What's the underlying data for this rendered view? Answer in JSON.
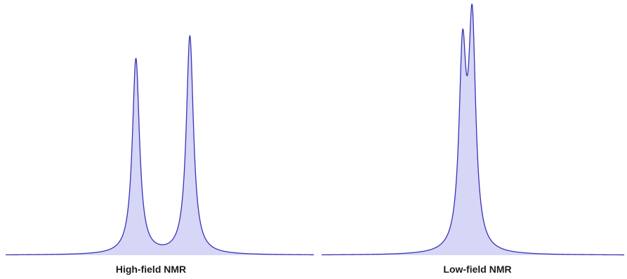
{
  "chart_data": [
    {
      "type": "line",
      "title": "High-field NMR",
      "xlabel": "",
      "ylabel": "",
      "grid": false,
      "legend": "none",
      "xlim": [
        0,
        440
      ],
      "ylim": [
        0,
        1
      ],
      "fill_under": true,
      "line_color": "#3a32b8",
      "fill_color": "#d6d6f7",
      "peaks": [
        {
          "center": 186,
          "height": 0.775
        },
        {
          "center": 263,
          "height": 0.865
        }
      ],
      "peak_halfwidth": 6.2
    },
    {
      "type": "line",
      "title": "Low-field NMR",
      "xlabel": "",
      "ylabel": "",
      "grid": false,
      "legend": "none",
      "xlim": [
        0,
        440
      ],
      "ylim": [
        0,
        1
      ],
      "fill_under": true,
      "line_color": "#3a32b8",
      "fill_color": "#d6d6f7",
      "peaks": [
        {
          "center": 205,
          "height": 0.75
        },
        {
          "center": 219,
          "height": 0.87
        }
      ],
      "peak_halfwidth": 6.2
    }
  ]
}
